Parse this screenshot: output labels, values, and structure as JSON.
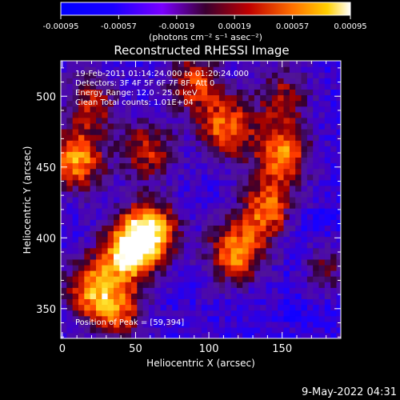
{
  "chart_data": {
    "type": "heatmap",
    "title": "Reconstructed RHESSI Image",
    "xlabel": "Heliocentric X (arcsec)",
    "ylabel": "Heliocentric Y (arcsec)",
    "xlim": [
      -1,
      190
    ],
    "ylim": [
      329,
      525
    ],
    "x_ticks": [
      0,
      50,
      100,
      150
    ],
    "y_ticks": [
      350,
      400,
      450,
      500
    ],
    "colorbar": {
      "ticks": [
        "-0.00095",
        "-0.00057",
        "-0.00019",
        "0.00019",
        "0.00057",
        "0.00095"
      ],
      "range": [
        -0.00095,
        0.00095
      ],
      "units": "(photons cm⁻² s⁻¹ asec⁻²)"
    },
    "annotations": [
      "19-Feb-2011 01:14:24.000 to 01:20:24.000",
      "Detectors: 3F 4F 5F 6F 7F 8F, Att 0",
      "Energy Range: 12.0 - 25.0 keV",
      "Clean     Total counts: 1.01E+04"
    ],
    "peak_label": "Position of Peak = [59,394]",
    "peak": [
      59,
      394
    ],
    "timestamp": "9-May-2022 04:31",
    "blobs": [
      {
        "x": 60,
        "y": 405,
        "peak": 0.00095
      },
      {
        "x": 45,
        "y": 390,
        "peak": 0.0009
      },
      {
        "x": 10,
        "y": 455,
        "peak": 0.0008
      },
      {
        "x": 90,
        "y": 510,
        "peak": 0.0006
      },
      {
        "x": 112,
        "y": 478,
        "peak": 0.00072
      },
      {
        "x": 150,
        "y": 460,
        "peak": 0.00075
      },
      {
        "x": 140,
        "y": 420,
        "peak": 0.0007
      },
      {
        "x": 118,
        "y": 390,
        "peak": 0.00078
      },
      {
        "x": 20,
        "y": 365,
        "peak": 0.0007
      },
      {
        "x": 38,
        "y": 348,
        "peak": 0.0006
      },
      {
        "x": 20,
        "y": 495,
        "peak": 0.0005
      },
      {
        "x": 58,
        "y": 462,
        "peak": 0.00055
      },
      {
        "x": 150,
        "y": 500,
        "peak": 0.00045
      },
      {
        "x": 180,
        "y": 378,
        "peak": 0.00045
      }
    ]
  }
}
